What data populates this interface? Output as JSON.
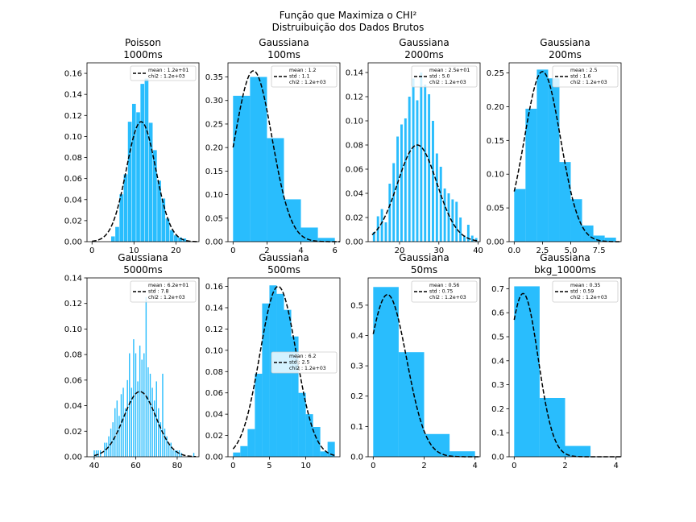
{
  "figure": {
    "title_line1": "Função que Maximiza o CHI²",
    "title_line2": "Distruibuição dos Dados Brutos"
  },
  "style": {
    "bar_color": "#29bdfd",
    "fit_color": "#000000"
  },
  "chart_data": [
    {
      "type": "bar",
      "title": "Poisson",
      "subtitle": "1000ms",
      "xlim": [
        -1.2,
        25.5
      ],
      "ylim": [
        0,
        0.17
      ],
      "xticks": [
        0,
        10,
        20
      ],
      "yticks": [
        0,
        0.02,
        0.04,
        0.06,
        0.08,
        0.1,
        0.12,
        0.14,
        0.16
      ],
      "ytick_labels": [
        "0.00",
        "0.02",
        "0.04",
        "0.06",
        "0.08",
        "0.10",
        "0.12",
        "0.14",
        "0.16"
      ],
      "bins": [
        [
          5,
          0.005
        ],
        [
          6,
          0.014
        ],
        [
          7,
          0.045
        ],
        [
          8,
          0.064
        ],
        [
          9,
          0.114
        ],
        [
          10,
          0.131
        ],
        [
          11,
          0.123
        ],
        [
          12,
          0.15
        ],
        [
          13,
          0.155
        ],
        [
          14,
          0.113
        ],
        [
          15,
          0.087
        ],
        [
          16,
          0.058
        ],
        [
          17,
          0.041
        ],
        [
          18,
          0.022
        ],
        [
          19,
          0.011
        ],
        [
          20,
          0.006
        ],
        [
          21,
          0.004
        ],
        [
          22,
          0.003
        ]
      ],
      "bar_width": 0.9,
      "fit": {
        "mean": 11.7,
        "sd": 3.5,
        "amp": 0.114
      },
      "legend": [
        "mean : 1.2e+01",
        "chi2 : 1.2e+03"
      ],
      "legend_loc": "upper-right"
    },
    {
      "type": "bar",
      "title": "Gaussiana",
      "subtitle": "100ms",
      "xlim": [
        -0.3,
        6.3
      ],
      "ylim": [
        0,
        0.38
      ],
      "xticks": [
        0,
        2,
        4,
        6
      ],
      "yticks": [
        0,
        0.05,
        0.1,
        0.15,
        0.2,
        0.25,
        0.3,
        0.35
      ],
      "ytick_labels": [
        "0.00",
        "0.05",
        "0.10",
        "0.15",
        "0.20",
        "0.25",
        "0.30",
        "0.35"
      ],
      "bins": [
        [
          0.5,
          0.31
        ],
        [
          1.5,
          0.35
        ],
        [
          2.5,
          0.22
        ],
        [
          3.5,
          0.09
        ],
        [
          4.5,
          0.03
        ],
        [
          5.5,
          0.008
        ]
      ],
      "bar_width": 1,
      "fit": {
        "mean": 1.2,
        "sd": 1.1,
        "amp": 0.363
      },
      "legend": [
        "mean : 1.2",
        "std : 1.1",
        "chi2 : 1.2e+03"
      ],
      "legend_loc": "upper-right"
    },
    {
      "type": "bar",
      "title": "Gaussiana",
      "subtitle": "2000ms",
      "xlim": [
        12.0,
        40.5
      ],
      "ylim": [
        0,
        0.148
      ],
      "xticks": [
        20,
        30,
        40
      ],
      "yticks": [
        0,
        0.02,
        0.04,
        0.06,
        0.08,
        0.1,
        0.12,
        0.14
      ],
      "ytick_labels": [
        "0.00",
        "0.02",
        "0.04",
        "0.06",
        "0.08",
        "0.10",
        "0.12",
        "0.14"
      ],
      "bins": [
        [
          13.5,
          0.008
        ],
        [
          14.5,
          0.021
        ],
        [
          15.5,
          0.027
        ],
        [
          16.5,
          0.016
        ],
        [
          17.5,
          0.048
        ],
        [
          18.5,
          0.065
        ],
        [
          19.5,
          0.087
        ],
        [
          20.5,
          0.097
        ],
        [
          21.5,
          0.102
        ],
        [
          22.5,
          0.12
        ],
        [
          23.5,
          0.135
        ],
        [
          24.5,
          0.117
        ],
        [
          25.5,
          0.14
        ],
        [
          26.5,
          0.13
        ],
        [
          27.5,
          0.122
        ],
        [
          28.5,
          0.1
        ],
        [
          29.5,
          0.073
        ],
        [
          30.5,
          0.062
        ],
        [
          31.5,
          0.044
        ],
        [
          32.5,
          0.04
        ],
        [
          33.5,
          0.035
        ],
        [
          34.5,
          0.033
        ],
        [
          35.5,
          0.02
        ],
        [
          36.5,
          0.005
        ],
        [
          37.5,
          0.014
        ],
        [
          38.5,
          0.005
        ],
        [
          39.5,
          0.003
        ]
      ],
      "bar_width": 0.6,
      "fit": {
        "mean": 24.5,
        "sd": 5.0,
        "amp": 0.08
      },
      "legend": [
        "mean : 2.5e+01",
        "std : 5.0",
        "chi2 : 1.2e+03"
      ],
      "legend_loc": "upper-right"
    },
    {
      "type": "bar",
      "title": "Gaussiana",
      "subtitle": "200ms",
      "xlim": [
        -0.45,
        9.45
      ],
      "ylim": [
        0,
        0.265
      ],
      "xticks": [
        0.0,
        2.5,
        5.0,
        7.5
      ],
      "yticks": [
        0,
        0.05,
        0.1,
        0.15,
        0.2,
        0.25
      ],
      "ytick_labels": [
        "0.00",
        "0.05",
        "0.10",
        "0.15",
        "0.20",
        "0.25"
      ],
      "xtick_labels": [
        "0.0",
        "2.5",
        "5.0",
        "7.5"
      ],
      "bins": [
        [
          0.5,
          0.078
        ],
        [
          1.5,
          0.197
        ],
        [
          2.5,
          0.255
        ],
        [
          3.5,
          0.242
        ],
        [
          4.5,
          0.118
        ],
        [
          5.5,
          0.063
        ],
        [
          6.5,
          0.024
        ],
        [
          7.5,
          0.009
        ],
        [
          8.5,
          0.006
        ]
      ],
      "bar_width": 1,
      "fit": {
        "mean": 2.5,
        "sd": 1.6,
        "amp": 0.252
      },
      "legend": [
        "mean : 2.5",
        "std : 1.6",
        "chi2 : 1.2e+03"
      ],
      "legend_loc": "upper-right"
    },
    {
      "type": "bar",
      "title": "Gaussiana",
      "subtitle": "5000ms",
      "xlim": [
        36.5,
        90.5
      ],
      "ylim": [
        0,
        0.14
      ],
      "xticks": [
        40,
        60,
        80
      ],
      "yticks": [
        0,
        0.02,
        0.04,
        0.06,
        0.08,
        0.1,
        0.12,
        0.14
      ],
      "ytick_labels": [
        "0.00",
        "0.02",
        "0.04",
        "0.06",
        "0.08",
        "0.10",
        "0.12",
        "0.14"
      ],
      "bins": [
        [
          40,
          0.005
        ],
        [
          41,
          0.005
        ],
        [
          42,
          0.005
        ],
        [
          43,
          0.005
        ],
        [
          45,
          0.011
        ],
        [
          46,
          0.011
        ],
        [
          47,
          0.016
        ],
        [
          48,
          0.022
        ],
        [
          49,
          0.027
        ],
        [
          50,
          0.038
        ],
        [
          51,
          0.044
        ],
        [
          52,
          0.032
        ],
        [
          53,
          0.049
        ],
        [
          54,
          0.054
        ],
        [
          55,
          0.038
        ],
        [
          56,
          0.06
        ],
        [
          57,
          0.081
        ],
        [
          58,
          0.054
        ],
        [
          59,
          0.092
        ],
        [
          60,
          0.081
        ],
        [
          61,
          0.059
        ],
        [
          62,
          0.087
        ],
        [
          63,
          0.076
        ],
        [
          64,
          0.081
        ],
        [
          65,
          0.125
        ],
        [
          66,
          0.07
        ],
        [
          67,
          0.065
        ],
        [
          68,
          0.054
        ],
        [
          69,
          0.044
        ],
        [
          70,
          0.059
        ],
        [
          71,
          0.038
        ],
        [
          72,
          0.027
        ],
        [
          73,
          0.065
        ],
        [
          74,
          0.022
        ],
        [
          75,
          0.016
        ],
        [
          76,
          0.011
        ],
        [
          77,
          0.011
        ],
        [
          78,
          0.005
        ],
        [
          79,
          0.005
        ],
        [
          80,
          0.005
        ],
        [
          81,
          0.005
        ],
        [
          82,
          0.003
        ],
        [
          88,
          0.003
        ]
      ],
      "bar_width": 0.55,
      "fit": {
        "mean": 62,
        "sd": 7.8,
        "amp": 0.051
      },
      "legend": [
        "mean : 6.2e+01",
        "std : 7.8",
        "chi2 : 1.2e+03"
      ],
      "legend_loc": "upper-right"
    },
    {
      "type": "bar",
      "title": "Gaussiana",
      "subtitle": "500ms",
      "xlim": [
        -0.7,
        14.7
      ],
      "ylim": [
        0,
        0.168
      ],
      "xticks": [
        0,
        5,
        10
      ],
      "yticks": [
        0,
        0.02,
        0.04,
        0.06,
        0.08,
        0.1,
        0.12,
        0.14,
        0.16
      ],
      "ytick_labels": [
        "0.00",
        "0.02",
        "0.04",
        "0.06",
        "0.08",
        "0.10",
        "0.12",
        "0.14",
        "0.16"
      ],
      "bins": [
        [
          0.5,
          0.004
        ],
        [
          1.5,
          0.01
        ],
        [
          2.5,
          0.026
        ],
        [
          3.5,
          0.078
        ],
        [
          4.5,
          0.144
        ],
        [
          5.5,
          0.161
        ],
        [
          6.5,
          0.153
        ],
        [
          7.5,
          0.138
        ],
        [
          8.5,
          0.113
        ],
        [
          9.5,
          0.06
        ],
        [
          10.5,
          0.04
        ],
        [
          11.5,
          0.028
        ],
        [
          12.5,
          0.005
        ],
        [
          13.5,
          0.014
        ]
      ],
      "bar_width": 1,
      "fit": {
        "mean": 6.2,
        "sd": 2.5,
        "amp": 0.16
      },
      "legend": [
        "mean : 6.2",
        "std : 2.5",
        "chi2 : 1.2e+03"
      ],
      "legend_loc": "center-right"
    },
    {
      "type": "bar",
      "title": "Gaussiana",
      "subtitle": "50ms",
      "xlim": [
        -0.2,
        4.2
      ],
      "ylim": [
        0,
        0.59
      ],
      "xticks": [
        0,
        2,
        4
      ],
      "yticks": [
        0,
        0.1,
        0.2,
        0.3,
        0.4,
        0.5
      ],
      "ytick_labels": [
        "0.0",
        "0.1",
        "0.2",
        "0.3",
        "0.4",
        "0.5"
      ],
      "bins": [
        [
          0.5,
          0.56
        ],
        [
          1.5,
          0.345
        ],
        [
          2.5,
          0.075
        ],
        [
          3.5,
          0.018
        ]
      ],
      "bar_width": 1,
      "fit": {
        "mean": 0.56,
        "sd": 0.75,
        "amp": 0.535
      },
      "legend": [
        "mean : 0.56",
        "std : 0.75",
        "chi2 : 1.2e+03"
      ],
      "legend_loc": "upper-right"
    },
    {
      "type": "bar",
      "title": "Gaussiana",
      "subtitle": "bkg_1000ms",
      "xlim": [
        -0.2,
        4.2
      ],
      "ylim": [
        0,
        0.745
      ],
      "xticks": [
        0,
        2,
        4
      ],
      "yticks": [
        0,
        0.1,
        0.2,
        0.3,
        0.4,
        0.5,
        0.6,
        0.7
      ],
      "ytick_labels": [
        "0.0",
        "0.1",
        "0.2",
        "0.3",
        "0.4",
        "0.5",
        "0.6",
        "0.7"
      ],
      "bins": [
        [
          0.5,
          0.71
        ],
        [
          1.5,
          0.245
        ],
        [
          2.5,
          0.045
        ]
      ],
      "bar_width": 1,
      "fit": {
        "mean": 0.35,
        "sd": 0.59,
        "amp": 0.68
      },
      "legend": [
        "mean : 0.35",
        "std : 0.59",
        "chi2 : 1.2e+03"
      ],
      "legend_loc": "upper-right"
    }
  ]
}
